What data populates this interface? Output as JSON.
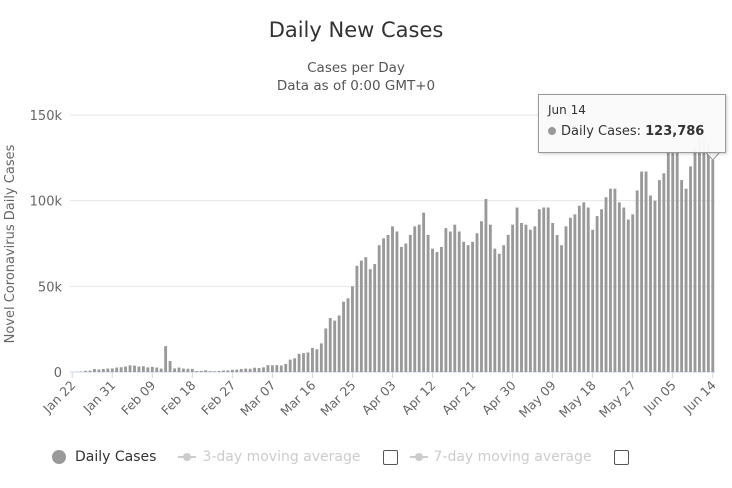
{
  "chart_data": {
    "type": "bar",
    "title": "Daily New Cases",
    "subtitle": [
      "Cases per Day",
      "Data as of 0:00 GMT+0"
    ],
    "ylabel": "Novel Coronavirus Daily Cases",
    "xlabel": "",
    "ylim": [
      0,
      150000
    ],
    "yticks": [
      0,
      50000,
      100000,
      150000
    ],
    "ytick_labels": [
      "0",
      "50k",
      "100k",
      "150k"
    ],
    "xtick_labels": [
      "Jan 22",
      "Jan 31",
      "Feb 09",
      "Feb 18",
      "Feb 27",
      "Mar 07",
      "Mar 16",
      "Mar 25",
      "Apr 03",
      "Apr 12",
      "Apr 21",
      "Apr 30",
      "May 09",
      "May 18",
      "May 27",
      "Jun 05",
      "Jun 14"
    ],
    "xtick_every": 9,
    "grid": true,
    "bar_color": "#999999",
    "series": [
      {
        "name": "Daily Cases",
        "values": [
          0,
          100,
          280,
          680,
          800,
          1750,
          1470,
          1750,
          2000,
          2100,
          2600,
          2800,
          3200,
          3900,
          3700,
          3200,
          3400,
          2700,
          3000,
          2600,
          2000,
          15100,
          6400,
          2100,
          2600,
          2000,
          1900,
          1800,
          550,
          640,
          1000,
          500,
          400,
          600,
          850,
          950,
          1300,
          1400,
          1800,
          2000,
          1900,
          2500,
          2300,
          2700,
          4000,
          3900,
          4000,
          3800,
          4700,
          7200,
          8000,
          10600,
          11000,
          11400,
          14000,
          13300,
          16700,
          25400,
          31500,
          30000,
          33000,
          41000,
          43000,
          50000,
          62000,
          65000,
          67000,
          60000,
          63000,
          74000,
          78000,
          80000,
          85000,
          82000,
          73000,
          75000,
          80000,
          85000,
          86000,
          93000,
          80000,
          72000,
          70000,
          73000,
          84000,
          82000,
          86000,
          82000,
          76000,
          74000,
          76000,
          81000,
          88000,
          101000,
          86000,
          72000,
          69000,
          74000,
          80000,
          86000,
          96000,
          87000,
          86000,
          83000,
          85000,
          95000,
          96000,
          96000,
          87000,
          80000,
          74000,
          85000,
          90000,
          92000,
          97000,
          99000,
          96000,
          83000,
          91000,
          95000,
          102000,
          107000,
          107000,
          99000,
          96000,
          89000,
          92000,
          106000,
          117000,
          117000,
          103000,
          100000,
          112000,
          116000,
          128000,
          128000,
          128000,
          112000,
          107000,
          120000,
          132000,
          137000,
          137000,
          133000,
          123786
        ]
      }
    ],
    "legend": [
      {
        "label": "Daily Cases",
        "color": "#999999",
        "enabled": true
      },
      {
        "label": "3-day moving average",
        "color": "#cccccc",
        "enabled": false
      },
      {
        "label": "7-day moving average",
        "color": "#cccccc",
        "enabled": false
      }
    ],
    "legend_position": "bottom-left",
    "tooltip": {
      "date": "Jun 14",
      "label": "Daily Cases:",
      "value": "123,786"
    }
  }
}
